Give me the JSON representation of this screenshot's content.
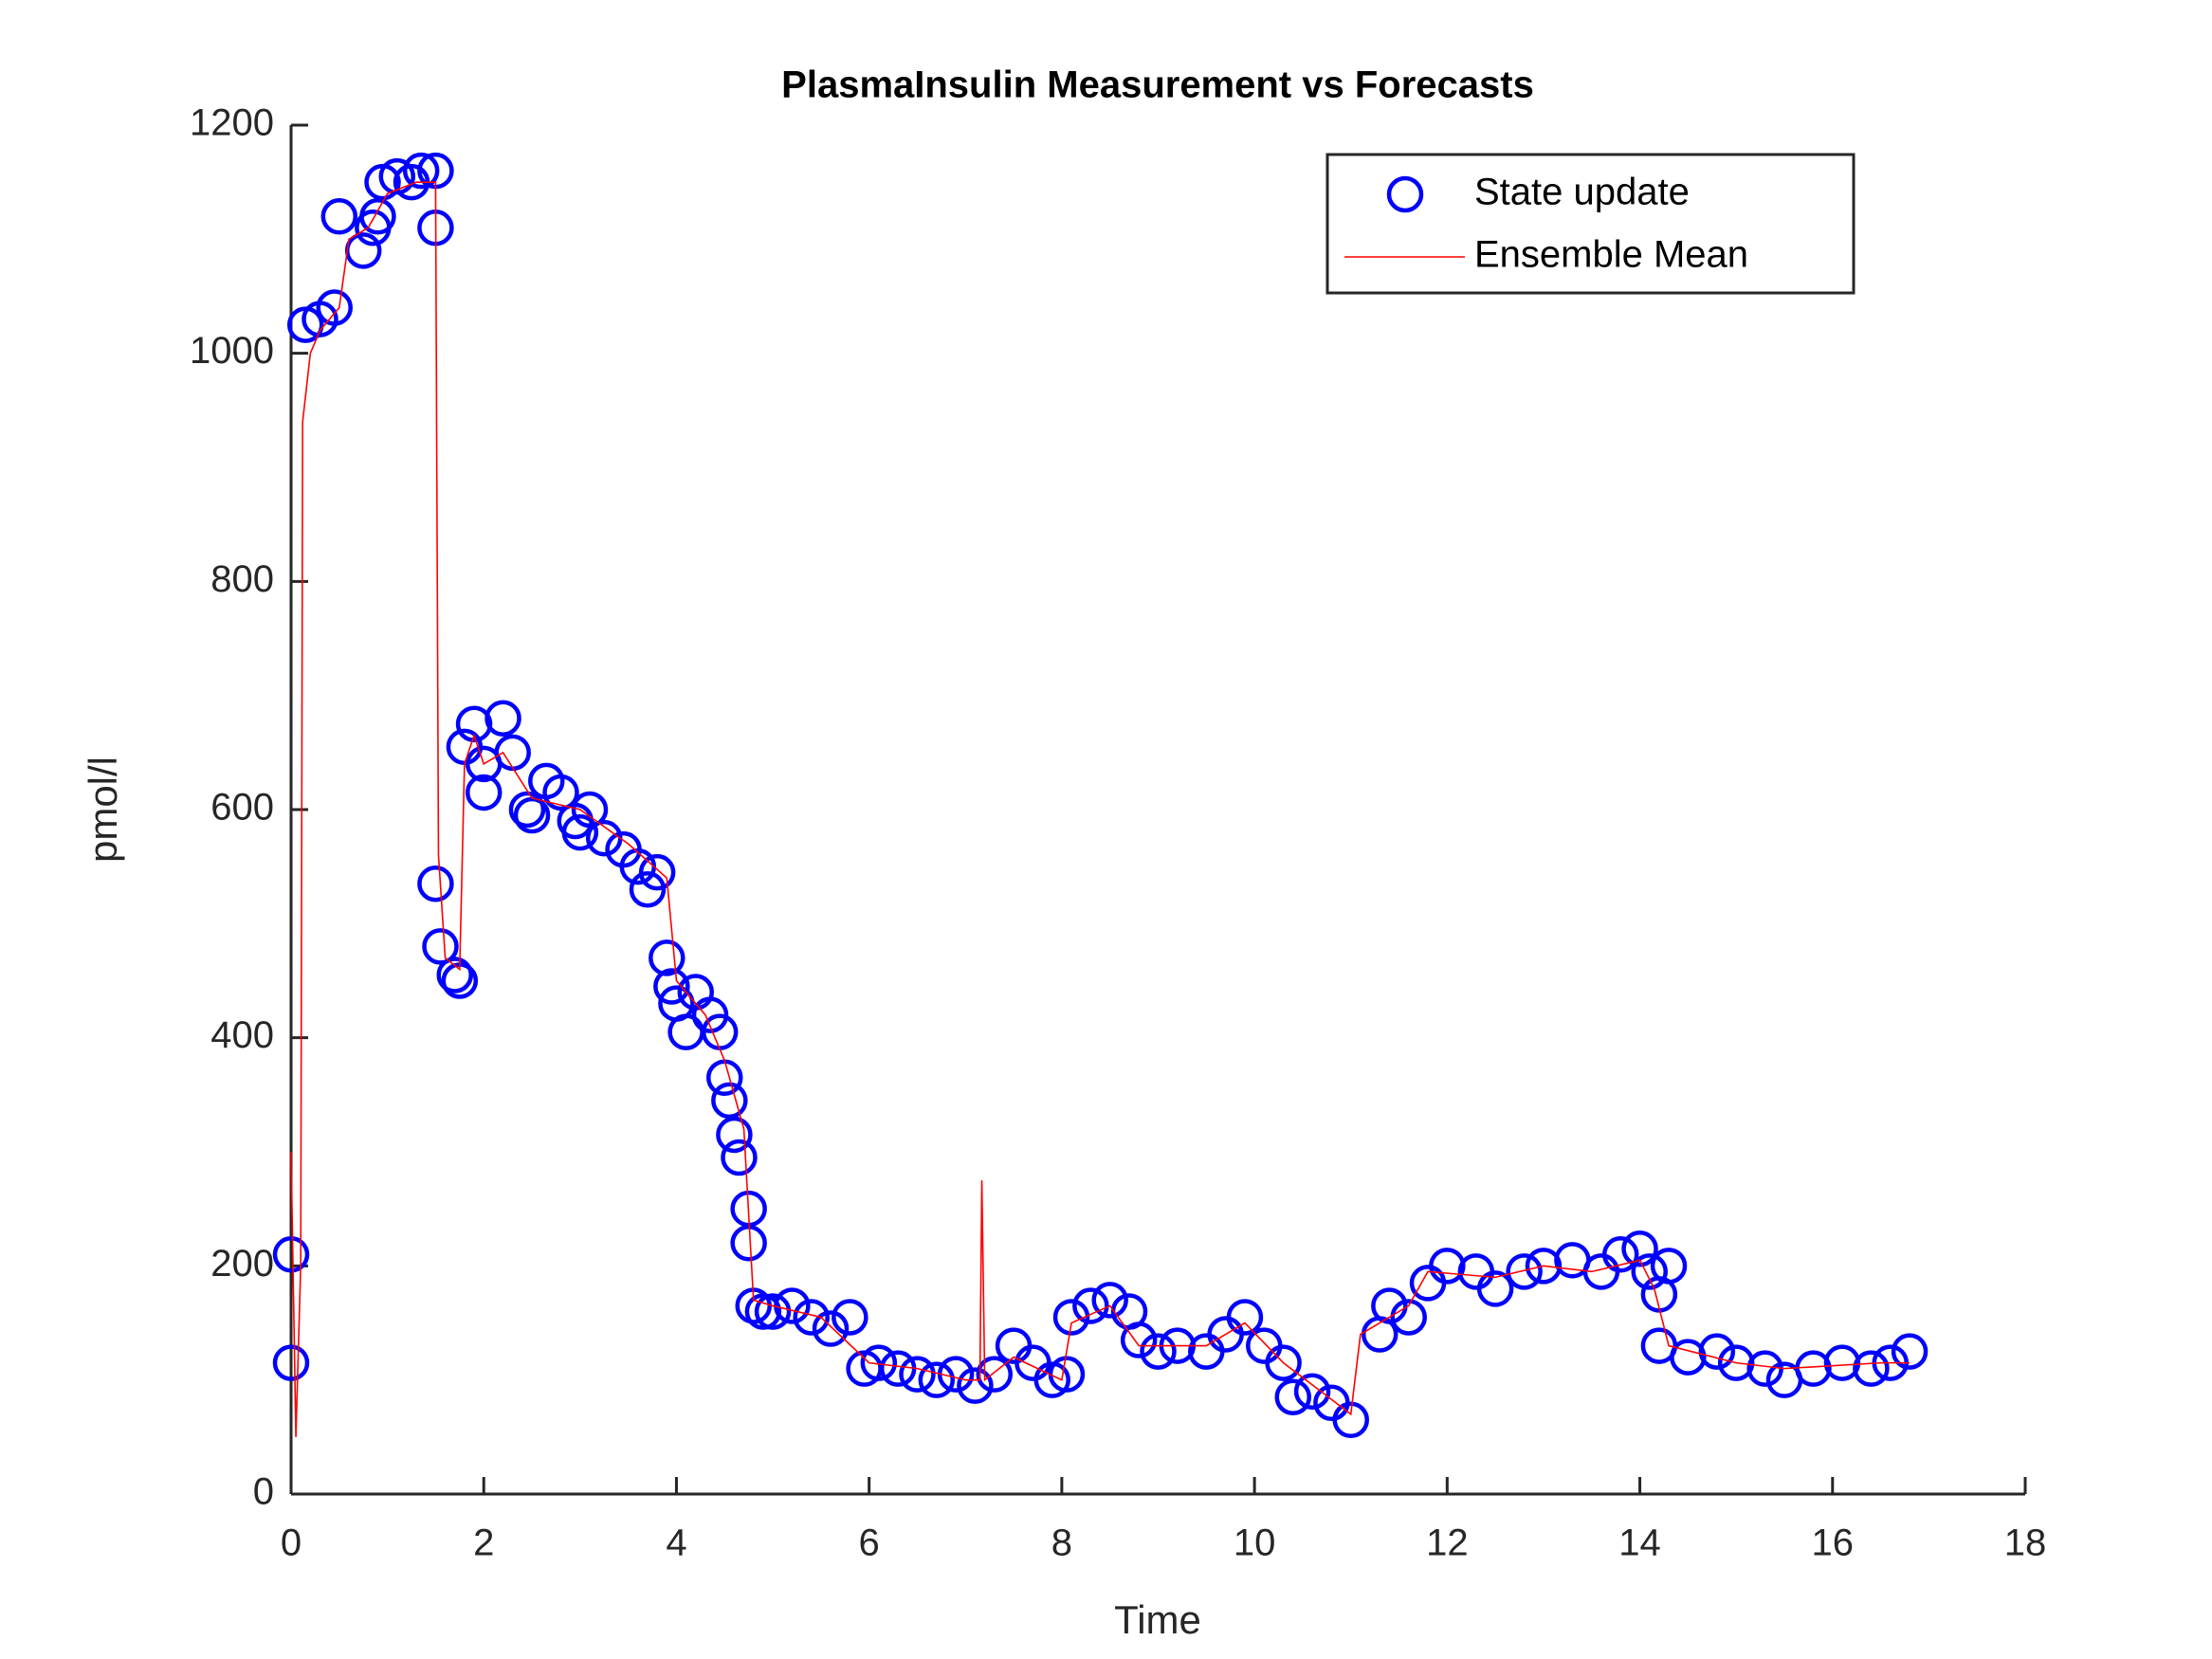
{
  "chart_data": {
    "type": "scatter",
    "title": "PlasmaInsulin Measurement vs Forecasts",
    "xlabel": "Time",
    "ylabel": "pmol/l",
    "xlim": [
      0,
      18
    ],
    "ylim": [
      0,
      1200
    ],
    "xticks": [
      0,
      2,
      4,
      6,
      8,
      10,
      12,
      14,
      16,
      18
    ],
    "yticks": [
      0,
      200,
      400,
      600,
      800,
      1000,
      1200
    ],
    "legend": "northeast",
    "grid": false,
    "series": [
      {
        "name": "State update",
        "color": "#0000ff",
        "style": "markers",
        "x": [
          0,
          0,
          0.15,
          0.3,
          0.45,
          0.5,
          0.75,
          0.85,
          0.9,
          0.95,
          1.1,
          1.25,
          1.35,
          1.5,
          1.5,
          1.5,
          1.55,
          1.7,
          1.75,
          1.8,
          1.9,
          2.0,
          2.0,
          2.2,
          2.3,
          2.45,
          2.5,
          2.65,
          2.8,
          2.95,
          3.0,
          3.1,
          3.25,
          3.45,
          3.6,
          3.7,
          3.8,
          3.9,
          3.95,
          4.0,
          4.1,
          4.2,
          4.35,
          4.45,
          4.5,
          4.55,
          4.6,
          4.65,
          4.75,
          4.75,
          4.8,
          4.9,
          5.0,
          5.2,
          5.4,
          5.6,
          5.8,
          5.95,
          6.1,
          6.3,
          6.5,
          6.7,
          6.9,
          7.1,
          7.3,
          7.5,
          7.7,
          7.9,
          8.05,
          8.1,
          8.3,
          8.5,
          8.7,
          8.8,
          9.0,
          9.2,
          9.5,
          9.7,
          9.9,
          10.1,
          10.3,
          10.4,
          10.6,
          10.8,
          11.0,
          11.3,
          11.4,
          11.6,
          11.8,
          12.0,
          12.3,
          12.5,
          12.8,
          13.0,
          13.3,
          13.6,
          13.8,
          14.0,
          14.1,
          14.2,
          14.3,
          14.2,
          14.5,
          14.8,
          15.0,
          15.3,
          15.5,
          15.8,
          16.1,
          16.4,
          16.6,
          16.8
        ],
        "values": [
          115,
          210,
          1025,
          1030,
          1040,
          1120,
          1090,
          1110,
          1120,
          1150,
          1155,
          1150,
          1160,
          1160,
          1110,
          535,
          480,
          455,
          450,
          655,
          675,
          640,
          615,
          680,
          650,
          600,
          595,
          625,
          615,
          590,
          580,
          600,
          575,
          565,
          550,
          530,
          545,
          470,
          445,
          430,
          405,
          440,
          420,
          405,
          365,
          345,
          315,
          295,
          250,
          220,
          165,
          160,
          160,
          165,
          155,
          145,
          155,
          110,
          115,
          110,
          105,
          100,
          105,
          95,
          105,
          130,
          115,
          100,
          105,
          155,
          165,
          170,
          160,
          135,
          125,
          130,
          125,
          140,
          155,
          130,
          115,
          85,
          90,
          80,
          65,
          140,
          165,
          155,
          185,
          200,
          195,
          180,
          195,
          200,
          205,
          195,
          210,
          215,
          195,
          175,
          200,
          130,
          120,
          125,
          115,
          110,
          100,
          110,
          115,
          110,
          115,
          125
        ]
      },
      {
        "name": "Ensemble Mean",
        "color": "#ff0000",
        "style": "line",
        "x": [
          0,
          0.05,
          0.1,
          0.12,
          0.2,
          0.3,
          0.5,
          0.6,
          0.8,
          1.0,
          1.3,
          1.5,
          1.53,
          1.6,
          1.75,
          1.8,
          1.9,
          2.0,
          2.2,
          2.5,
          3.0,
          3.5,
          3.9,
          4.0,
          4.3,
          4.5,
          4.7,
          4.8,
          5.0,
          5.5,
          6.0,
          6.5,
          7.0,
          7.15,
          7.17,
          7.2,
          7.5,
          8.0,
          8.1,
          8.5,
          8.8,
          9.5,
          9.9,
          10.3,
          11.0,
          11.1,
          11.6,
          11.8,
          12.5,
          13.0,
          13.5,
          14.0,
          14.15,
          14.3,
          15.0,
          15.5,
          16.5,
          16.8
        ],
        "values": [
          300,
          50,
          200,
          940,
          1000,
          1020,
          1040,
          1100,
          1110,
          1140,
          1150,
          1150,
          560,
          470,
          460,
          640,
          665,
          640,
          650,
          610,
          600,
          570,
          540,
          450,
          420,
          380,
          320,
          170,
          165,
          155,
          115,
          110,
          100,
          100,
          275,
          100,
          120,
          100,
          150,
          165,
          130,
          130,
          150,
          115,
          70,
          140,
          165,
          195,
          190,
          200,
          195,
          205,
          180,
          130,
          115,
          110,
          115,
          115
        ]
      }
    ]
  }
}
